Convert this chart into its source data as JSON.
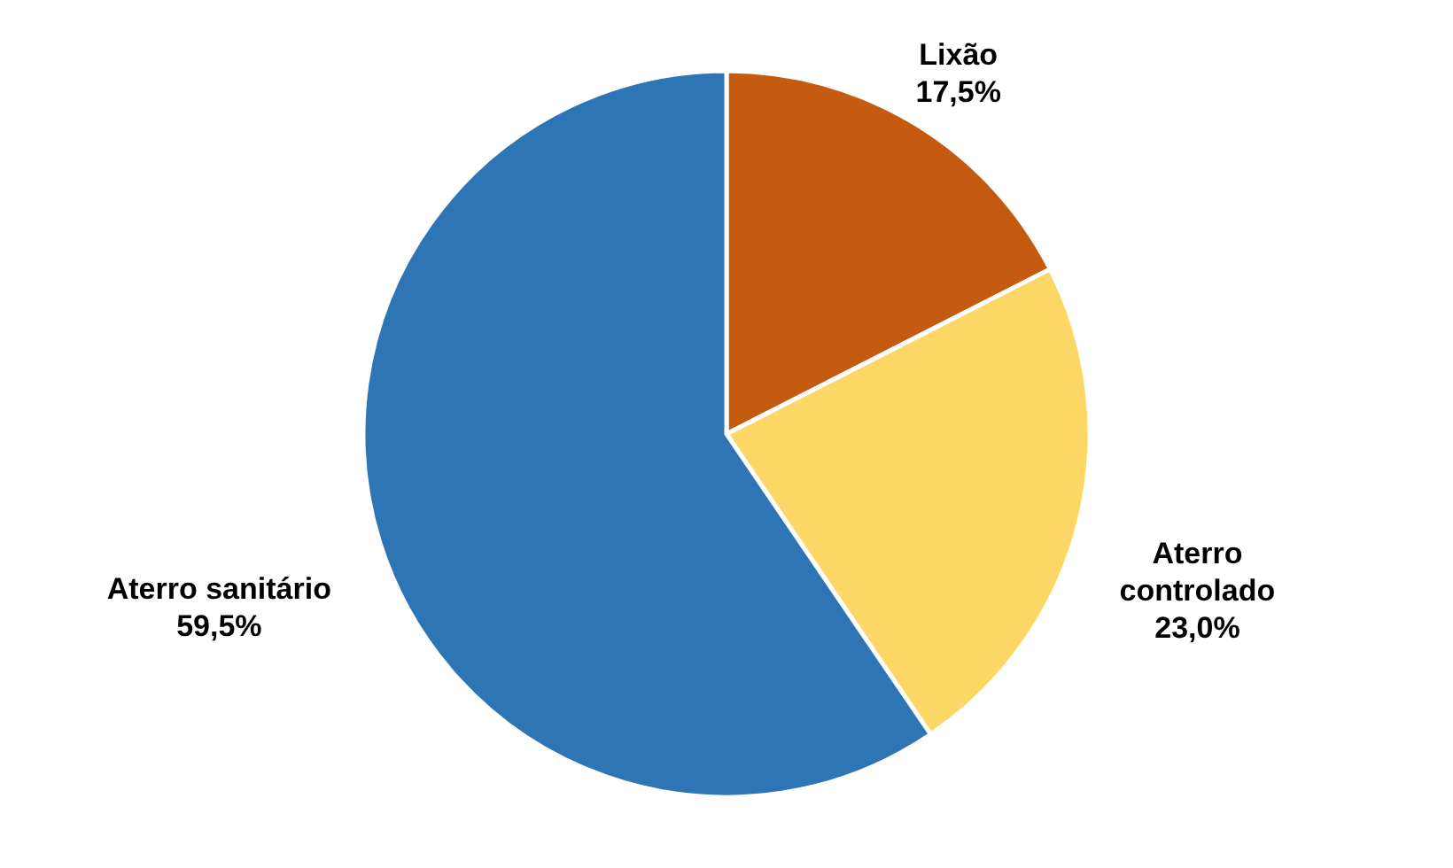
{
  "chart_data": {
    "type": "pie",
    "categories": [
      "Lixão",
      "Aterro controlado",
      "Aterro sanitário"
    ],
    "values": [
      17.5,
      23.0,
      59.5
    ],
    "colors": [
      "#c55a11",
      "#fdd766",
      "#2e75b6"
    ],
    "value_labels": [
      "17,5%",
      "23,0%",
      "59,5%"
    ]
  }
}
